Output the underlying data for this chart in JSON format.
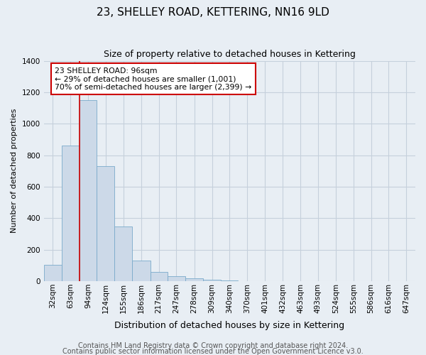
{
  "title": "23, SHELLEY ROAD, KETTERING, NN16 9LD",
  "subtitle": "Size of property relative to detached houses in Kettering",
  "xlabel": "Distribution of detached houses by size in Kettering",
  "ylabel": "Number of detached properties",
  "bin_labels": [
    "32sqm",
    "63sqm",
    "94sqm",
    "124sqm",
    "155sqm",
    "186sqm",
    "217sqm",
    "247sqm",
    "278sqm",
    "309sqm",
    "340sqm",
    "370sqm",
    "401sqm",
    "432sqm",
    "463sqm",
    "493sqm",
    "524sqm",
    "555sqm",
    "586sqm",
    "616sqm",
    "647sqm"
  ],
  "bar_heights": [
    105,
    860,
    1150,
    730,
    345,
    130,
    60,
    30,
    20,
    10,
    5,
    2,
    0,
    0,
    0,
    0,
    0,
    0,
    0,
    0,
    0
  ],
  "bar_color": "#ccd9e8",
  "bar_edge_color": "#7aaacb",
  "bin_edges": [
    32,
    63,
    94,
    124,
    155,
    186,
    217,
    247,
    278,
    309,
    340,
    370,
    401,
    432,
    463,
    493,
    524,
    555,
    586,
    616,
    647,
    678
  ],
  "vline_x": 94,
  "vline_color": "#cc0000",
  "ylim": [
    0,
    1400
  ],
  "yticks": [
    0,
    200,
    400,
    600,
    800,
    1000,
    1200,
    1400
  ],
  "annotation_title": "23 SHELLEY ROAD: 96sqm",
  "annotation_line2": "← 29% of detached houses are smaller (1,001)",
  "annotation_line3": "70% of semi-detached houses are larger (2,399) →",
  "annotation_box_color": "#ffffff",
  "annotation_box_edge": "#cc0000",
  "footer1": "Contains HM Land Registry data © Crown copyright and database right 2024.",
  "footer2": "Contains public sector information licensed under the Open Government Licence v3.0.",
  "background_color": "#e8eef4",
  "plot_background": "#e8eef4",
  "grid_color": "#c5d0dc",
  "title_fontsize": 11,
  "subtitle_fontsize": 9,
  "ylabel_fontsize": 8,
  "xlabel_fontsize": 9,
  "tick_fontsize": 7.5,
  "footer_fontsize": 7
}
